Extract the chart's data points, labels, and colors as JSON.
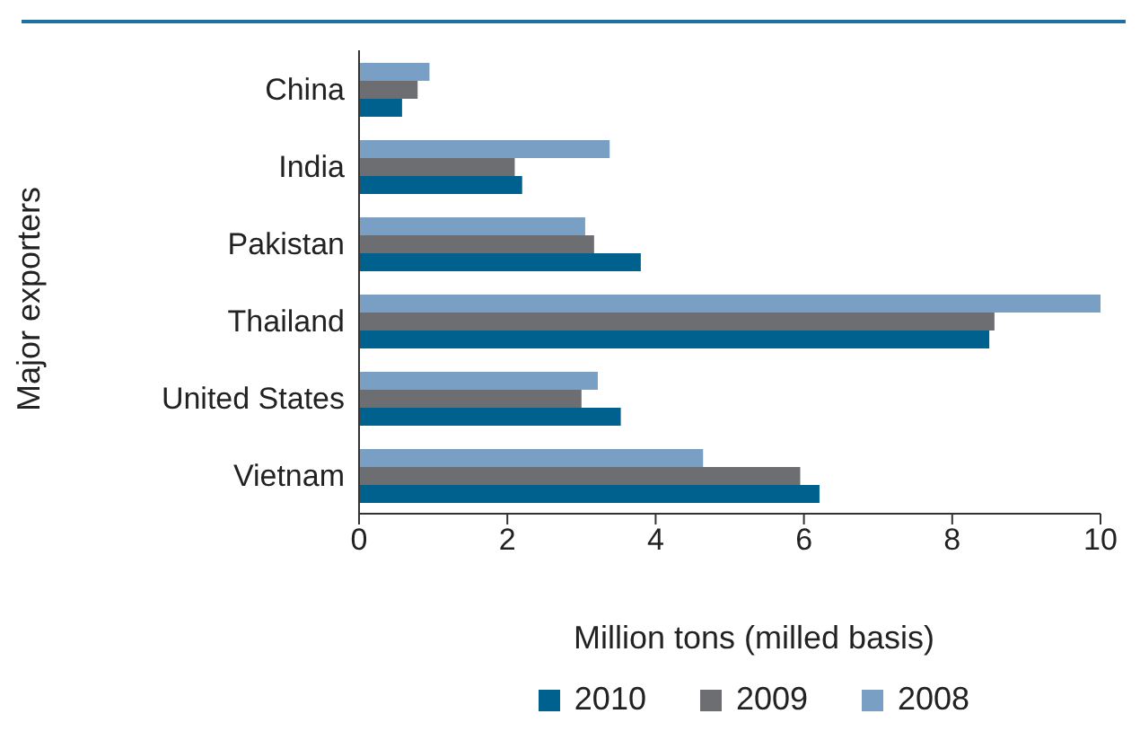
{
  "chart_data": {
    "type": "bar",
    "orientation": "horizontal",
    "ylabel": "Major exporters",
    "xlabel": "Million tons (milled basis)",
    "categories": [
      "China",
      "India",
      "Pakistan",
      "Thailand",
      "United States",
      "Vietnam"
    ],
    "series": [
      {
        "name": "2010",
        "color": "#00618f",
        "values": [
          0.58,
          2.2,
          3.8,
          8.5,
          3.53,
          6.21
        ]
      },
      {
        "name": "2009",
        "color": "#6d6e71",
        "values": [
          0.79,
          2.1,
          3.17,
          8.57,
          3.0,
          5.95
        ]
      },
      {
        "name": "2008",
        "color": "#7a9fc4",
        "values": [
          0.95,
          3.38,
          3.05,
          10.0,
          3.22,
          4.64
        ]
      }
    ],
    "xlim": [
      0,
      10
    ],
    "xticks": [
      0,
      2,
      4,
      6,
      8,
      10
    ],
    "grid": false,
    "legend": "bottom"
  }
}
